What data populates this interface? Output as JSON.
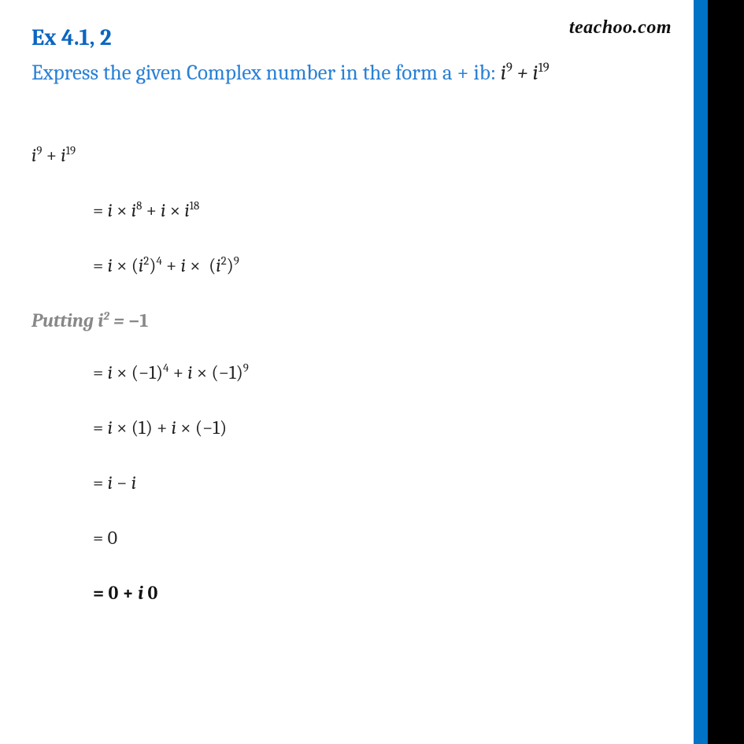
{
  "watermark": "teachoo.com",
  "heading": "Ex  4.1, 2",
  "question_prefix": "Express the given Complex number in the form a + ib:  ",
  "question_expr": "i⁹ + i¹⁹",
  "lines": {
    "l1": "i⁹ + i¹⁹",
    "l2": "= i × i⁸ + i × i¹⁸",
    "l3": "= i × (i²)⁴ + i ×  (i²)⁹",
    "putting": "Putting i² = −1",
    "l4": "= i × (−1)⁴ + i × (−1)⁹",
    "l5": "= i × (1) + i × (−1)",
    "l6": "= i − i",
    "l7": "= 0",
    "l8": "= 0 + i 0"
  },
  "colors": {
    "heading": "#0a66c2",
    "question": "#2980d6",
    "text": "#222222",
    "putting": "#888888",
    "blue_strip": "#0073c5",
    "background": "#ffffff"
  }
}
